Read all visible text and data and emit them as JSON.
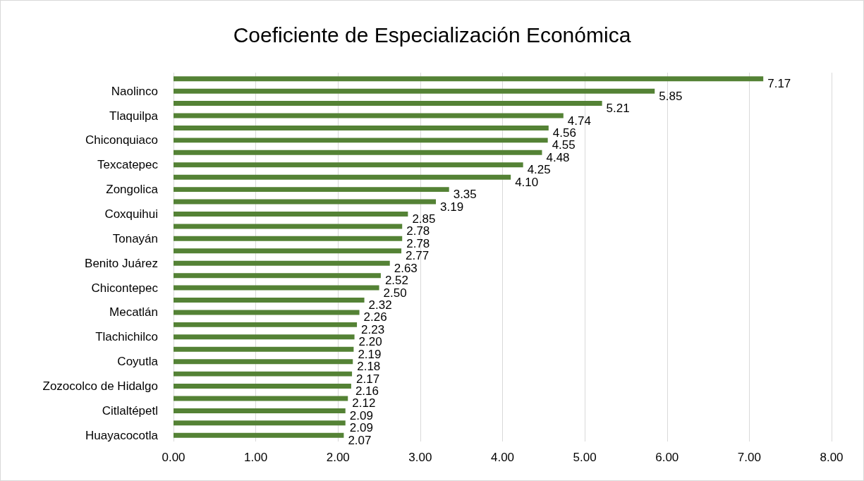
{
  "chart_data": {
    "type": "bar",
    "orientation": "horizontal",
    "title": "Coeficiente de Especialización Económica",
    "categories": [
      null,
      "Naolinco",
      null,
      "Tlaquilpa",
      null,
      "Chiconquiaco",
      null,
      "Texcatepec",
      null,
      "Zongolica",
      null,
      "Coxquihui",
      null,
      "Tonayán",
      null,
      "Benito Juárez",
      null,
      "Chicontepec",
      null,
      "Mecatlán",
      null,
      "Tlachichilco",
      null,
      "Coyutla",
      null,
      "Zozocolco de Hidalgo",
      null,
      "Citlaltépetl",
      null,
      "Huayacocotla"
    ],
    "values": [
      7.17,
      5.85,
      5.21,
      4.74,
      4.56,
      4.55,
      4.48,
      4.25,
      4.1,
      3.35,
      3.19,
      2.85,
      2.78,
      2.78,
      2.77,
      2.63,
      2.52,
      2.5,
      2.32,
      2.26,
      2.23,
      2.2,
      2.19,
      2.18,
      2.17,
      2.16,
      2.12,
      2.09,
      2.09,
      2.07
    ],
    "value_labels": [
      "7.17",
      "5.85",
      "5.21",
      "4.74",
      "4.56",
      "4.55",
      "4.48",
      "4.25",
      "4.10",
      "3.35",
      "3.19",
      "2.85",
      "2.78",
      "2.78",
      "2.77",
      "2.63",
      "2.52",
      "2.50",
      "2.32",
      "2.26",
      "2.23",
      "2.20",
      "2.19",
      "2.18",
      "2.17",
      "2.16",
      "2.12",
      "2.09",
      "2.09",
      "2.07"
    ],
    "color": "#548235",
    "xlim": [
      0,
      8
    ],
    "xticks": [
      {
        "value": 0,
        "label": "0.00"
      },
      {
        "value": 1,
        "label": "1.00"
      },
      {
        "value": 2,
        "label": "2.00"
      },
      {
        "value": 3,
        "label": "3.00"
      },
      {
        "value": 4,
        "label": "4.00"
      },
      {
        "value": 5,
        "label": "5.00"
      },
      {
        "value": 6,
        "label": "6.00"
      },
      {
        "value": 7,
        "label": "7.00"
      },
      {
        "value": 8,
        "label": "8.00"
      }
    ],
    "grid": "x"
  }
}
